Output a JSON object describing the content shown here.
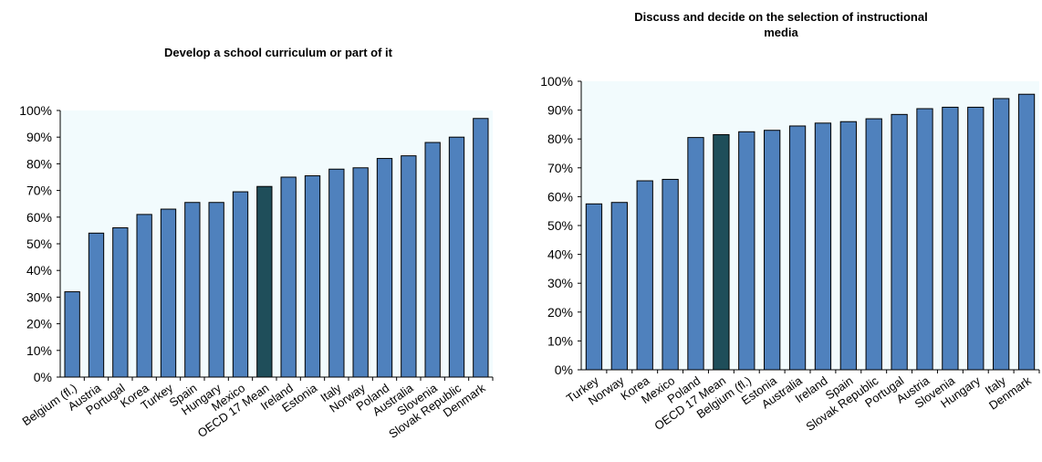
{
  "chart_data": [
    {
      "type": "bar",
      "title": "Develop a school curriculum or part of it",
      "xlabel": "",
      "ylabel": "",
      "ylim": [
        0,
        100
      ],
      "y_ticks": [
        "0%",
        "10%",
        "20%",
        "30%",
        "40%",
        "50%",
        "60%",
        "70%",
        "80%",
        "90%",
        "100%"
      ],
      "categories": [
        "Belgium (fl.)",
        "Austria",
        "Portugal",
        "Korea",
        "Turkey",
        "Spain",
        "Hungary",
        "Mexico",
        "OECD 17 Mean",
        "Ireland",
        "Estonia",
        "Italy",
        "Norway",
        "Poland",
        "Australia",
        "Slovenia",
        "Slovak Republic",
        "Denmark"
      ],
      "values": [
        32,
        54,
        56,
        61,
        63,
        65.5,
        65.5,
        69.5,
        71.5,
        75,
        75.5,
        78,
        78.5,
        82,
        83,
        88,
        90,
        97
      ],
      "highlight": "OECD 17 Mean",
      "grid": false,
      "colors": {
        "bar": "#4f81bd",
        "highlight": "#1f4e5a",
        "plot_bg": "#f2fbfd"
      }
    },
    {
      "type": "bar",
      "title": "Discuss and decide on the selection of instructional media",
      "xlabel": "",
      "ylabel": "",
      "ylim": [
        0,
        100
      ],
      "y_ticks": [
        "0%",
        "10%",
        "20%",
        "30%",
        "40%",
        "50%",
        "60%",
        "70%",
        "80%",
        "90%",
        "100%"
      ],
      "categories": [
        "Turkey",
        "Norway",
        "Korea",
        "Mexico",
        "Poland",
        "OECD 17 Mean",
        "Belgium (fl.)",
        "Estonia",
        "Australia",
        "Ireland",
        "Spain",
        "Slovak Republic",
        "Portugal",
        "Austria",
        "Slovenia",
        "Hungary",
        "Italy",
        "Denmark"
      ],
      "values": [
        57.5,
        58,
        65.5,
        66,
        80.5,
        81.5,
        82.5,
        83,
        84.5,
        85.5,
        86,
        87,
        88.5,
        90.5,
        91,
        91,
        94,
        95.5
      ],
      "highlight": "OECD 17 Mean",
      "grid": false,
      "colors": {
        "bar": "#4f81bd",
        "highlight": "#1f4e5a",
        "plot_bg": "#f2fbfd"
      }
    }
  ]
}
